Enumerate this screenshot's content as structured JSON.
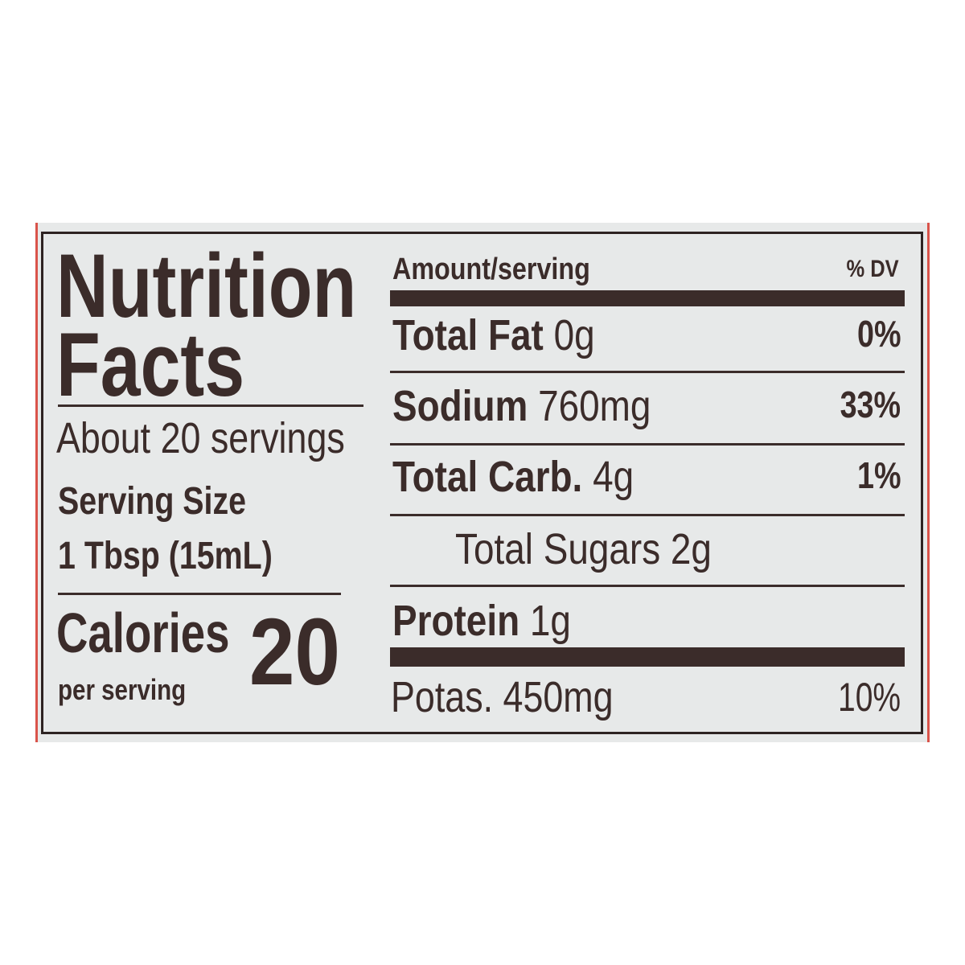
{
  "left": {
    "title_line1": "Nutrition",
    "title_line2": "Facts",
    "servings": "About 20 servings",
    "serving_size_label": "Serving Size",
    "serving_size_value": "1 Tbsp (15mL)",
    "calories_label": "Calories",
    "calories_value": "20",
    "per_serving": "per serving"
  },
  "right": {
    "header_amount": "Amount/serving",
    "header_dv": "% DV",
    "rows": [
      {
        "name": "Total Fat",
        "amount": "0g",
        "dv": "0%"
      },
      {
        "name": "Sodium",
        "amount": "760mg",
        "dv": "33%"
      },
      {
        "name": "Total Carb.",
        "amount": "4g",
        "dv": "1%"
      },
      {
        "name": "Total Sugars",
        "amount": "2g",
        "dv": ""
      },
      {
        "name": "Protein",
        "amount": "1g",
        "dv": ""
      },
      {
        "name": "Potas.",
        "amount": "450mg",
        "dv": "10%"
      }
    ]
  },
  "colors": {
    "ink": "#3b2c2a",
    "label_bg": "#e7e9e9",
    "edge_red": "#d9534a"
  }
}
